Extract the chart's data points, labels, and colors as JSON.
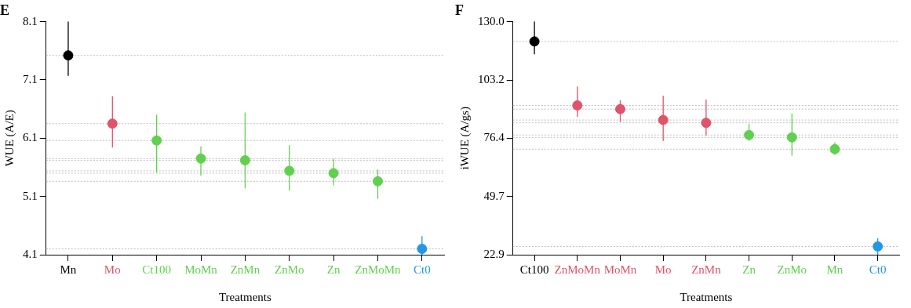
{
  "chart_data": [
    {
      "type": "scatter",
      "title": "E",
      "xlabel": "Treatments",
      "ylabel": "WUE (A/E)",
      "marker": "circle",
      "categories": [
        "Mn",
        "Mo",
        "Ct100",
        "MoMn",
        "ZnMn",
        "ZnMo",
        "Zn",
        "ZnMoMn",
        "Ct0"
      ],
      "values": [
        7.52,
        6.35,
        6.06,
        5.75,
        5.72,
        5.54,
        5.5,
        5.36,
        4.2
      ],
      "errors": [
        [
          7.17,
          8.1
        ],
        [
          5.94,
          6.82
        ],
        [
          5.51,
          6.5
        ],
        [
          5.46,
          5.96
        ],
        [
          5.24,
          6.54
        ],
        [
          5.2,
          5.98
        ],
        [
          5.29,
          5.74
        ],
        [
          5.06,
          5.56
        ],
        [
          4.1,
          4.42
        ]
      ],
      "colors": [
        "#000000",
        "#df536b",
        "#61d04f",
        "#61d04f",
        "#61d04f",
        "#61d04f",
        "#61d04f",
        "#61d04f",
        "#2297e6"
      ],
      "ylim": [
        4.1,
        8.1
      ],
      "yticks": [
        4.1,
        5.1,
        6.1,
        7.1,
        8.1
      ],
      "ref_lines": [
        {
          "axis": "y",
          "value": 7.52,
          "color": "#bebebe",
          "line_style": "dotted"
        },
        {
          "axis": "y",
          "value": 6.35,
          "color": "#bebebe",
          "line_style": "dotted"
        },
        {
          "axis": "y",
          "value": 6.06,
          "color": "#bebebe",
          "line_style": "dotted"
        },
        {
          "axis": "y",
          "value": 5.75,
          "color": "#bebebe",
          "line_style": "dotted"
        },
        {
          "axis": "y",
          "value": 5.72,
          "color": "#bebebe",
          "line_style": "dotted"
        },
        {
          "axis": "y",
          "value": 5.54,
          "color": "#bebebe",
          "line_style": "dotted"
        },
        {
          "axis": "y",
          "value": 5.5,
          "color": "#bebebe",
          "line_style": "dotted"
        },
        {
          "axis": "y",
          "value": 5.36,
          "color": "#bebebe",
          "line_style": "dotted"
        },
        {
          "axis": "y",
          "value": 4.2,
          "color": "#bebebe",
          "line_style": "dotted"
        }
      ]
    },
    {
      "type": "scatter",
      "title": "F",
      "xlabel": "Treatments",
      "ylabel": "iWUE (A/gs)",
      "marker": "circle",
      "categories": [
        "Ct100",
        "ZnMoMn",
        "MoMn",
        "Mo",
        "ZnMn",
        "Zn",
        "ZnMo",
        "Mn",
        "Ct0"
      ],
      "values": [
        120.9,
        91.5,
        89.8,
        84.8,
        83.5,
        77.9,
        76.8,
        71.4,
        26.7
      ],
      "errors": [
        [
          115.0,
          130.0
        ],
        [
          86.3,
          100.2
        ],
        [
          83.9,
          93.9
        ],
        [
          75.2,
          95.9
        ],
        [
          77.6,
          94.2
        ],
        [
          75.2,
          83.0
        ],
        [
          68.5,
          87.7
        ],
        [
          68.8,
          74.5
        ],
        [
          22.9,
          30.5
        ]
      ],
      "colors": [
        "#000000",
        "#df536b",
        "#df536b",
        "#df536b",
        "#df536b",
        "#61d04f",
        "#61d04f",
        "#61d04f",
        "#2297e6"
      ],
      "ylim": [
        22.9,
        130.0
      ],
      "yticks": [
        22.9,
        49.7,
        76.4,
        103.2,
        {
          "value": 130,
          "label": "130.0"
        }
      ],
      "ref_lines": [
        {
          "axis": "y",
          "value": 120.9,
          "color": "#bebebe",
          "line_style": "dotted"
        },
        {
          "axis": "y",
          "value": 91.5,
          "color": "#bebebe",
          "line_style": "dotted"
        },
        {
          "axis": "y",
          "value": 89.8,
          "color": "#bebebe",
          "line_style": "dotted"
        },
        {
          "axis": "y",
          "value": 84.8,
          "color": "#bebebe",
          "line_style": "dotted"
        },
        {
          "axis": "y",
          "value": 83.5,
          "color": "#bebebe",
          "line_style": "dotted"
        },
        {
          "axis": "y",
          "value": 77.9,
          "color": "#bebebe",
          "line_style": "dotted"
        },
        {
          "axis": "y",
          "value": 76.8,
          "color": "#bebebe",
          "line_style": "dotted"
        },
        {
          "axis": "y",
          "value": 71.4,
          "color": "#bebebe",
          "line_style": "dotted"
        },
        {
          "axis": "y",
          "value": 26.7,
          "color": "#bebebe",
          "line_style": "dotted"
        }
      ]
    }
  ]
}
